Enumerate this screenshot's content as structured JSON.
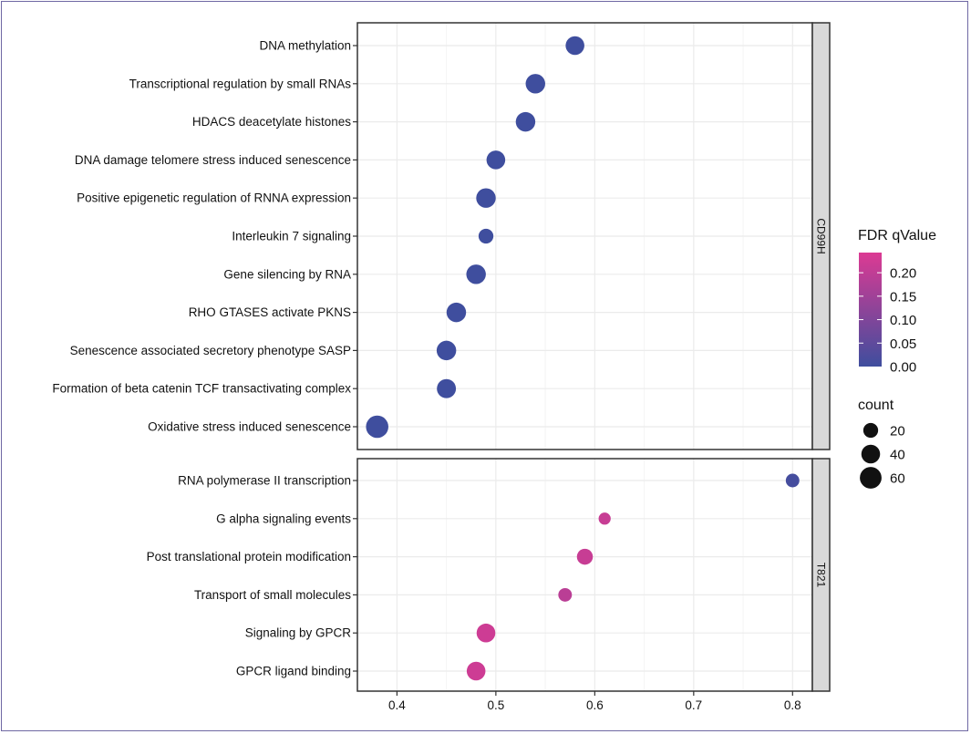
{
  "chart_data": {
    "type": "scatter",
    "title": "",
    "xlabel": "",
    "ylabel": "",
    "xlim": [
      0.36,
      0.82
    ],
    "x_ticks": [
      "0.4",
      "0.5",
      "0.6",
      "0.7",
      "0.8"
    ],
    "grid": true,
    "facets": [
      {
        "strip": "CD99H",
        "points": [
          {
            "term": "DNA methylation",
            "x": 0.58,
            "count": 40,
            "fdr": 0.0
          },
          {
            "term": "Transcriptional regulation by small RNAs",
            "x": 0.54,
            "count": 45,
            "fdr": 0.0
          },
          {
            "term": "HDACS deacetylate histones",
            "x": 0.53,
            "count": 45,
            "fdr": 0.0
          },
          {
            "term": "DNA damage telomere stress induced senescence",
            "x": 0.5,
            "count": 40,
            "fdr": 0.0
          },
          {
            "term": "Positive epigenetic regulation of RNNA expression",
            "x": 0.49,
            "count": 45,
            "fdr": 0.0
          },
          {
            "term": "Interleukin 7 signaling",
            "x": 0.49,
            "count": 20,
            "fdr": 0.0
          },
          {
            "term": "Gene silencing by RNA",
            "x": 0.48,
            "count": 45,
            "fdr": 0.0
          },
          {
            "term": "RHO GTASES activate PKNS",
            "x": 0.46,
            "count": 45,
            "fdr": 0.0
          },
          {
            "term": "Senescence associated secretory phenotype SASP",
            "x": 0.45,
            "count": 45,
            "fdr": 0.0
          },
          {
            "term": "Formation of beta catenin TCF transactivating complex",
            "x": 0.45,
            "count": 42,
            "fdr": 0.0
          },
          {
            "term": "Oxidative stress induced senescence",
            "x": 0.38,
            "count": 65,
            "fdr": 0.0
          }
        ]
      },
      {
        "strip": "T821",
        "points": [
          {
            "term": "RNA polymerase II transcription",
            "x": 0.8,
            "count": 15,
            "fdr": 0.01
          },
          {
            "term": "G alpha signaling events",
            "x": 0.61,
            "count": 10,
            "fdr": 0.21
          },
          {
            "term": "Post translational protein modification",
            "x": 0.59,
            "count": 25,
            "fdr": 0.21
          },
          {
            "term": "Transport of small molecules",
            "x": 0.57,
            "count": 15,
            "fdr": 0.19
          },
          {
            "term": "Signaling by GPCR",
            "x": 0.49,
            "count": 40,
            "fdr": 0.22
          },
          {
            "term": "GPCR ligand binding",
            "x": 0.48,
            "count": 40,
            "fdr": 0.22
          }
        ]
      }
    ],
    "legend_color": {
      "title": "FDR qValue",
      "ticks": [
        "0.20",
        "0.15",
        "0.10",
        "0.05",
        "0.00"
      ],
      "range": [
        0,
        0.243
      ],
      "low_color": "#3f4e9e",
      "high_color": "#dc3a93"
    },
    "legend_size": {
      "title": "count",
      "entries": [
        {
          "label": "20",
          "value": 20
        },
        {
          "label": "40",
          "value": 40
        },
        {
          "label": "60",
          "value": 60
        }
      ]
    },
    "legend_placement": "right"
  }
}
